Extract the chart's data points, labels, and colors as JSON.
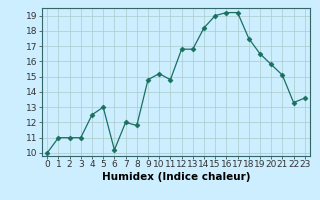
{
  "x": [
    0,
    1,
    2,
    3,
    4,
    5,
    6,
    7,
    8,
    9,
    10,
    11,
    12,
    13,
    14,
    15,
    16,
    17,
    18,
    19,
    20,
    21,
    22,
    23
  ],
  "y": [
    10,
    11,
    11,
    11,
    12.5,
    13,
    10.2,
    12,
    11.8,
    14.8,
    15.2,
    14.8,
    16.8,
    16.8,
    18.2,
    19,
    19.2,
    19.2,
    17.5,
    16.5,
    15.8,
    15.1,
    13.3,
    13.6
  ],
  "line_color": "#1a7060",
  "marker": "D",
  "marker_size": 2.5,
  "bg_color": "#cceeff",
  "grid_color": "#aacccc",
  "xlabel": "Humidex (Indice chaleur)",
  "xlim": [
    -0.5,
    23.5
  ],
  "ylim": [
    9.8,
    19.5
  ],
  "yticks": [
    10,
    11,
    12,
    13,
    14,
    15,
    16,
    17,
    18,
    19
  ],
  "xticks": [
    0,
    1,
    2,
    3,
    4,
    5,
    6,
    7,
    8,
    9,
    10,
    11,
    12,
    13,
    14,
    15,
    16,
    17,
    18,
    19,
    20,
    21,
    22,
    23
  ],
  "xtick_labels": [
    "0",
    "1",
    "2",
    "3",
    "4",
    "5",
    "6",
    "7",
    "8",
    "9",
    "10",
    "11",
    "12",
    "13",
    "14",
    "15",
    "16",
    "17",
    "18",
    "19",
    "20",
    "21",
    "22",
    "23"
  ],
  "font_size": 6.5,
  "xlabel_fontsize": 7.5
}
